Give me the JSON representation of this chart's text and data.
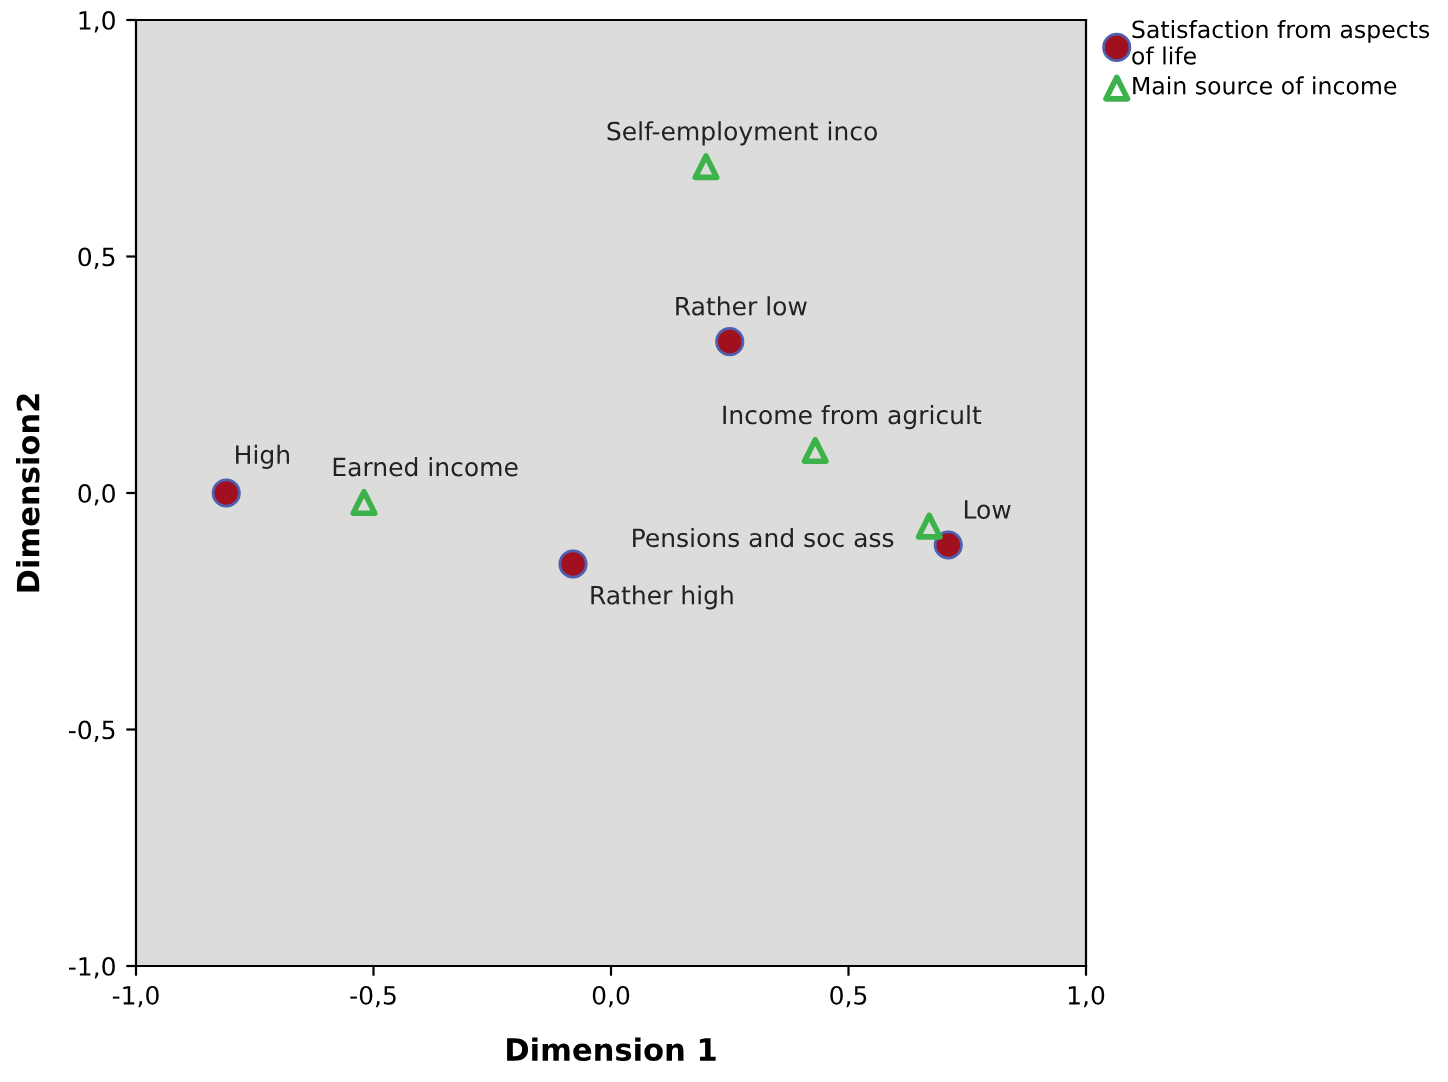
{
  "chart_data": {
    "type": "scatter",
    "xlabel": "Dimension 1",
    "ylabel": "Dimension2",
    "xlim": [
      -1.0,
      1.0
    ],
    "ylim": [
      -1.0,
      1.0
    ],
    "xticks": [
      {
        "value": -1.0,
        "label": "-1,0"
      },
      {
        "value": -0.5,
        "label": "-0,5"
      },
      {
        "value": 0.0,
        "label": "0,0"
      },
      {
        "value": 0.5,
        "label": "0,5"
      },
      {
        "value": 1.0,
        "label": "1,0"
      }
    ],
    "yticks": [
      {
        "value": -1.0,
        "label": "-1,0"
      },
      {
        "value": -0.5,
        "label": "-0,5"
      },
      {
        "value": 0.0,
        "label": "0,0"
      },
      {
        "value": 0.5,
        "label": "0,5"
      },
      {
        "value": 1.0,
        "label": "1,0"
      }
    ],
    "grid": false,
    "legend": "top right",
    "series": [
      {
        "name": "Satisfaction from aspects\nof life",
        "color": "#a0101e",
        "marker": "circle",
        "x": [
          -0.81,
          0.25,
          -0.08,
          0.71
        ],
        "values": [
          0.0,
          0.32,
          -0.15,
          -0.11
        ]
      },
      {
        "name": "Main source of income",
        "color": "#3cb24a",
        "marker": "triangle",
        "x": [
          0.2,
          -0.52,
          0.43,
          0.67
        ],
        "values": [
          0.69,
          -0.02,
          0.09,
          -0.07
        ]
      }
    ],
    "annotations": [
      {
        "text": "High",
        "x": -0.81,
        "y": 0.0
      },
      {
        "text": "Rather low",
        "x": 0.25,
        "y": 0.32
      },
      {
        "text": "Rather high",
        "x": -0.08,
        "y": -0.15
      },
      {
        "text": "Low",
        "x": 0.71,
        "y": -0.11
      },
      {
        "text": "Self-employment inco",
        "x": 0.2,
        "y": 0.69
      },
      {
        "text": "Earned income",
        "x": -0.52,
        "y": -0.02
      },
      {
        "text": "Income from agricult",
        "x": 0.43,
        "y": 0.09
      },
      {
        "text": "Pensions and soc ass",
        "x": 0.67,
        "y": -0.07
      }
    ]
  }
}
